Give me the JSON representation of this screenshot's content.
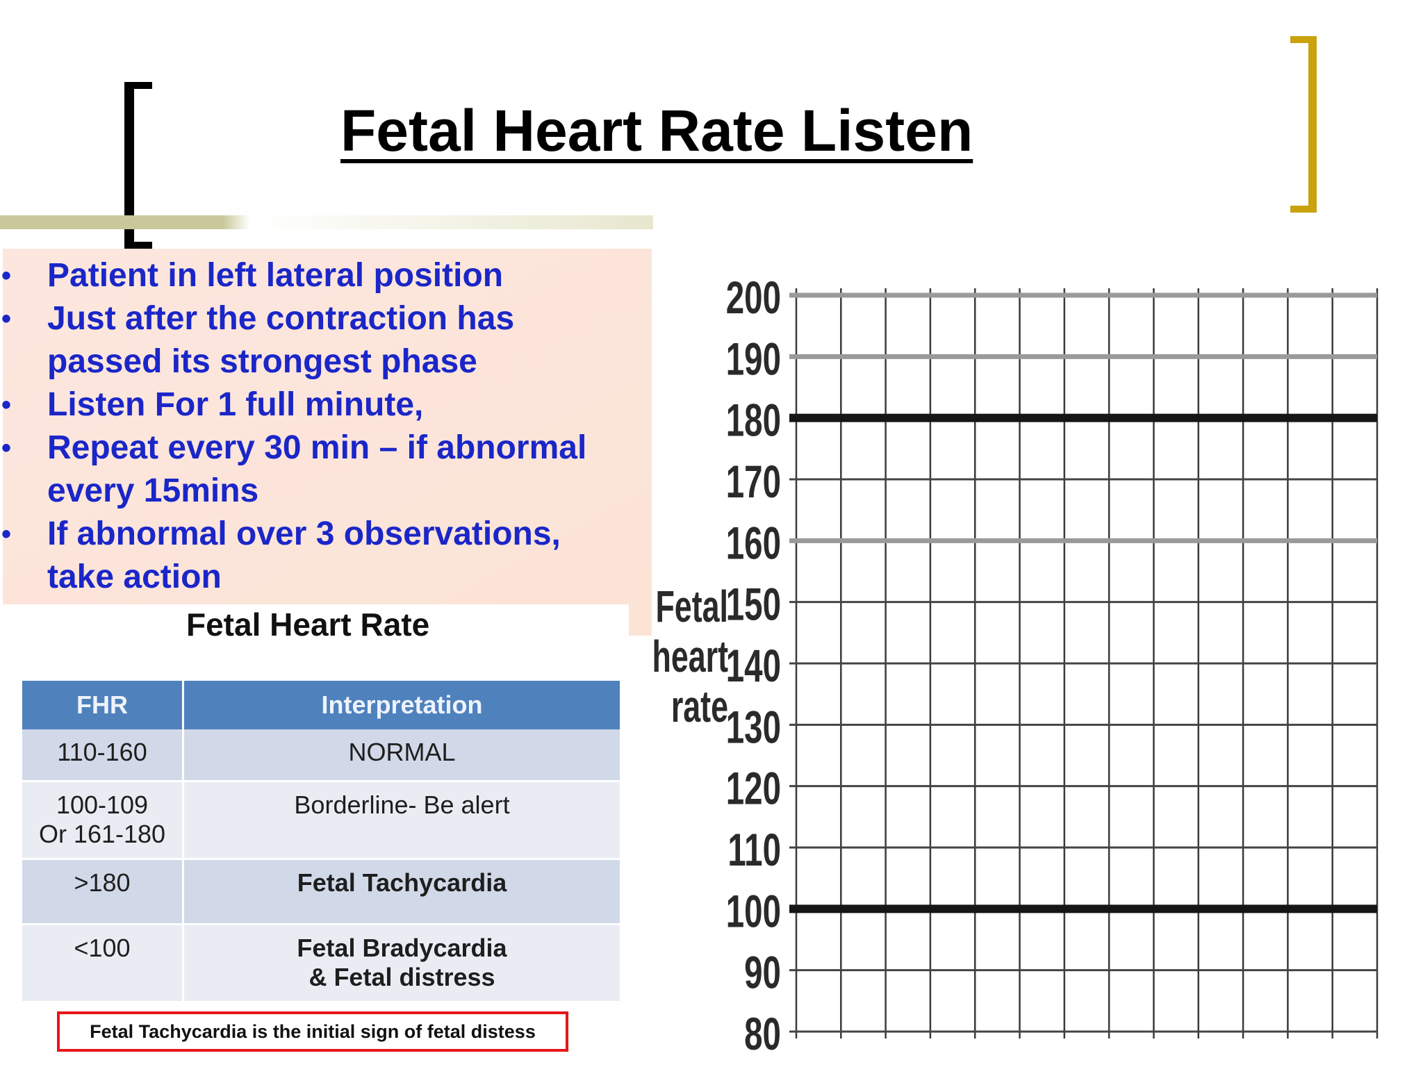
{
  "slide": {
    "title": "Fetal Heart Rate Listen",
    "bullets": [
      "Patient in left lateral position",
      "Just after the contraction has passed its strongest phase",
      "Listen For 1 full minute,",
      "Repeat every 30 min – if abnormal every 15mins",
      "If abnormal over 3 observations, take action"
    ],
    "bullet_lines": [
      [
        "Patient in left lateral position"
      ],
      [
        "Just after the contraction has",
        "passed its strongest phase"
      ],
      [
        "Listen For 1 full minute,"
      ],
      [
        "Repeat every 30 min – if abnormal",
        "every 15mins"
      ],
      [
        "If abnormal over 3 observations,",
        "take action"
      ]
    ],
    "bullet_marker": "•",
    "colors": {
      "bullet_text": "#1a26c8",
      "bullet_bg": "#fce6de",
      "left_bracket": "#000000",
      "right_bracket": "#c9a20e",
      "note_border": "#e8161b",
      "table_header": "#4f81bd"
    }
  },
  "table": {
    "title": "Fetal Heart Rate",
    "headers": [
      "FHR",
      "Interpretation"
    ],
    "rows": [
      {
        "fhr": [
          "110-160"
        ],
        "interpretation": [
          "NORMAL"
        ],
        "bold": false
      },
      {
        "fhr": [
          "100-109",
          "Or 161-180"
        ],
        "interpretation": [
          "Borderline- Be alert"
        ],
        "bold": false
      },
      {
        "fhr": [
          ">180"
        ],
        "interpretation": [
          "Fetal Tachycardia"
        ],
        "bold": true
      },
      {
        "fhr": [
          "<100"
        ],
        "interpretation": [
          "Fetal Bradycardia",
          "& Fetal distress"
        ],
        "bold": true
      }
    ],
    "note": "Fetal Tachycardia is the initial sign of fetal distess"
  },
  "chart_data": {
    "type": "table",
    "ylabel": [
      "Fetal",
      "heart",
      "rate"
    ],
    "yticks": [
      200,
      190,
      180,
      170,
      160,
      150,
      140,
      130,
      120,
      110,
      100,
      90,
      80
    ],
    "ylim": [
      80,
      200
    ],
    "highlighted_lines": [
      180,
      100
    ],
    "grid": true,
    "vertical_grid_columns": 14
  }
}
